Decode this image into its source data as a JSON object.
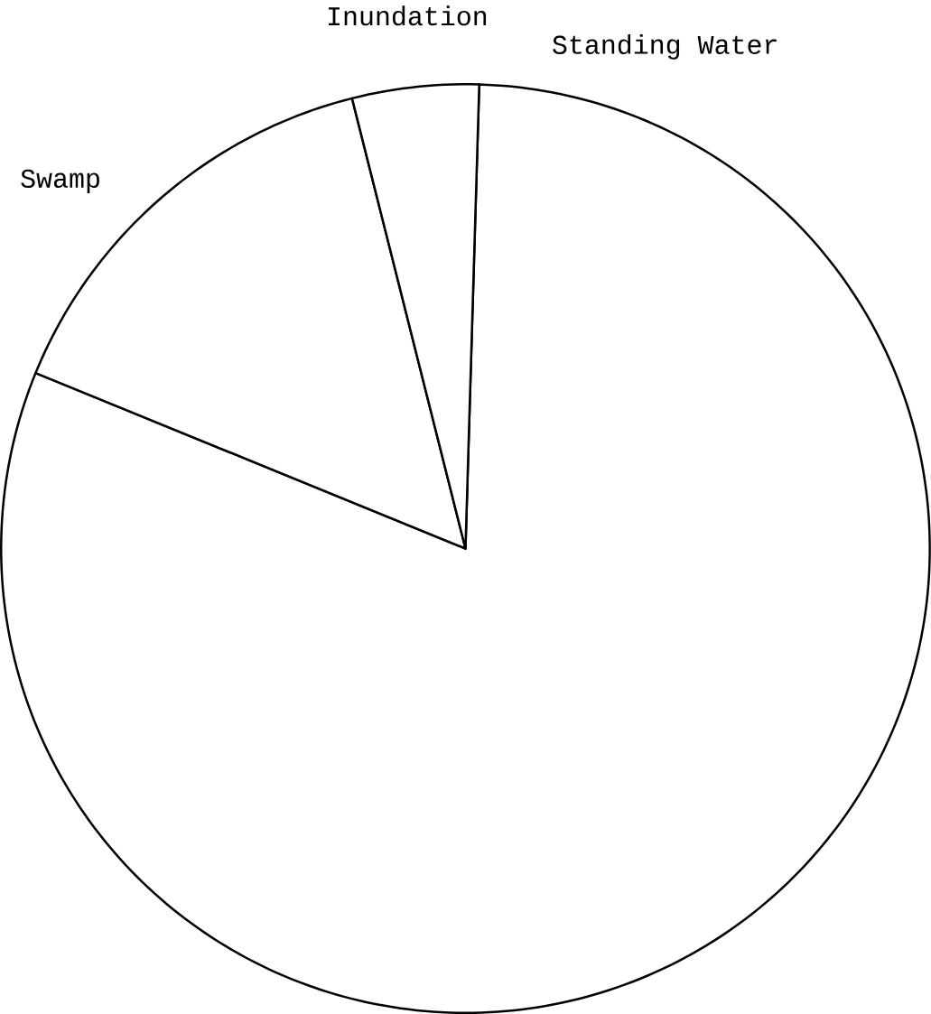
{
  "chart_data": {
    "type": "pie",
    "categories": [
      "Standing Water",
      "Swamp",
      "Inundation"
    ],
    "values": [
      80.7,
      14.9,
      4.4
    ],
    "colors": [
      "#ffffff",
      "#ffffff",
      "#ffffff"
    ]
  }
}
